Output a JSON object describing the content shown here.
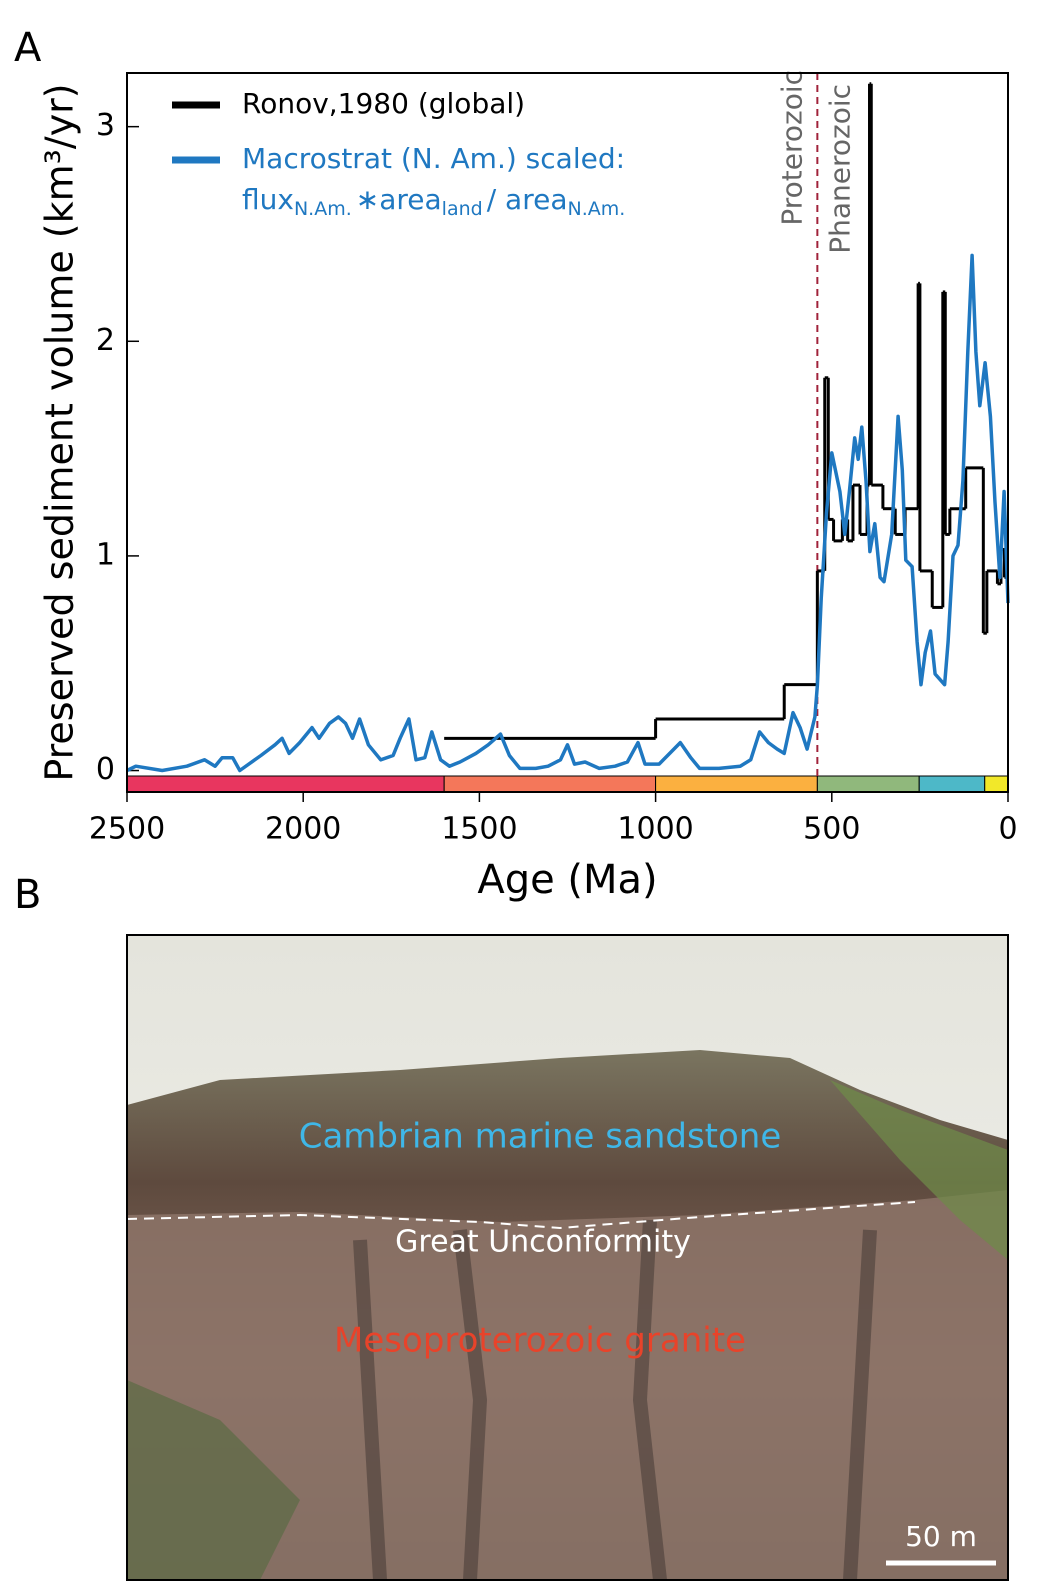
{
  "panels": [
    "A",
    "B"
  ],
  "chart_data": {
    "type": "line",
    "xlabel": "Age (Ma)",
    "ylabel": "Preserved sediment volume (km³/yr)",
    "xlim": [
      2500,
      0
    ],
    "xticks": [
      2500,
      2000,
      1500,
      1000,
      500,
      0
    ],
    "ylim": [
      -0.1,
      3.25
    ],
    "yticks": [
      0,
      1,
      2,
      3
    ],
    "legend": "upper left",
    "legend_formula": [
      "flux",
      "N.Am.",
      "∗area",
      "land",
      "/ area",
      "N.Am."
    ],
    "boundary": {
      "x": 541,
      "color": "#a0223a",
      "labels": [
        "Proterozoic",
        "Phanerozoic"
      ]
    },
    "eras": {
      "bins": [
        2500,
        1600,
        1000,
        541,
        252,
        66,
        0
      ],
      "colors": [
        "#e8365f",
        "#f4775a",
        "#fbb040",
        "#90b87c",
        "#4db8c8",
        "#f2e829"
      ]
    },
    "series": [
      {
        "name": "Ronov,1980 (global)",
        "color": "#000000",
        "step": true,
        "x": [
          1600,
          1000,
          635,
          541,
          520,
          510,
          495,
          470,
          455,
          440,
          420,
          400,
          393,
          388,
          355,
          320,
          292,
          255,
          250,
          215,
          185,
          178,
          165,
          120,
          70,
          60,
          30,
          20,
          10,
          0
        ],
        "values": [
          0.15,
          0.24,
          0.4,
          0.93,
          1.83,
          1.17,
          1.07,
          1.17,
          1.07,
          1.33,
          1.1,
          1.33,
          3.2,
          1.33,
          1.22,
          1.1,
          1.22,
          2.27,
          0.93,
          0.76,
          2.23,
          1.1,
          1.22,
          1.41,
          0.64,
          0.93,
          0.87,
          1.03,
          0.9,
          0.9
        ]
      },
      {
        "name": "Macrostrat (N. Am.) scaled:",
        "color": "#1f78c1",
        "x": [
          2500,
          2475,
          2400,
          2330,
          2280,
          2250,
          2230,
          2200,
          2180,
          2120,
          2080,
          2060,
          2040,
          2010,
          1975,
          1955,
          1925,
          1900,
          1880,
          1860,
          1840,
          1815,
          1780,
          1745,
          1725,
          1700,
          1680,
          1655,
          1635,
          1610,
          1585,
          1555,
          1510,
          1475,
          1440,
          1415,
          1385,
          1340,
          1305,
          1270,
          1250,
          1230,
          1200,
          1160,
          1115,
          1080,
          1050,
          1030,
          990,
          960,
          930,
          900,
          875,
          820,
          760,
          730,
          705,
          680,
          655,
          635,
          610,
          590,
          570,
          548,
          541,
          530,
          515,
          500,
          477,
          463,
          450,
          435,
          425,
          415,
          403,
          392,
          378,
          363,
          352,
          330,
          312,
          300,
          290,
          272,
          258,
          247,
          235,
          220,
          207,
          180,
          170,
          156,
          142,
          128,
          114,
          102,
          91,
          80,
          65,
          50,
          37,
          23,
          11,
          0
        ],
        "values": [
          0.0,
          0.02,
          0.0,
          0.02,
          0.05,
          0.02,
          0.06,
          0.06,
          0.0,
          0.07,
          0.12,
          0.15,
          0.08,
          0.13,
          0.2,
          0.15,
          0.22,
          0.25,
          0.22,
          0.15,
          0.24,
          0.12,
          0.05,
          0.07,
          0.15,
          0.24,
          0.05,
          0.06,
          0.18,
          0.05,
          0.02,
          0.04,
          0.08,
          0.12,
          0.17,
          0.07,
          0.01,
          0.01,
          0.02,
          0.05,
          0.12,
          0.03,
          0.04,
          0.01,
          0.02,
          0.04,
          0.13,
          0.03,
          0.03,
          0.08,
          0.13,
          0.06,
          0.01,
          0.01,
          0.02,
          0.05,
          0.18,
          0.13,
          0.1,
          0.08,
          0.27,
          0.2,
          0.1,
          0.25,
          0.4,
          0.8,
          1.2,
          1.48,
          1.3,
          1.1,
          1.3,
          1.55,
          1.45,
          1.6,
          1.35,
          1.02,
          1.15,
          0.9,
          0.88,
          1.1,
          1.65,
          1.4,
          0.98,
          0.95,
          0.6,
          0.4,
          0.55,
          0.65,
          0.45,
          0.4,
          0.6,
          1.0,
          1.05,
          1.35,
          1.95,
          2.4,
          1.95,
          1.7,
          1.9,
          1.65,
          1.25,
          0.9,
          1.3,
          0.78
        ]
      }
    ]
  },
  "photo": {
    "labels": [
      "Cambrian marine sandstone",
      "Great Unconformity",
      "Mesoproterozoic granite"
    ],
    "scale_bar": "50 m"
  }
}
